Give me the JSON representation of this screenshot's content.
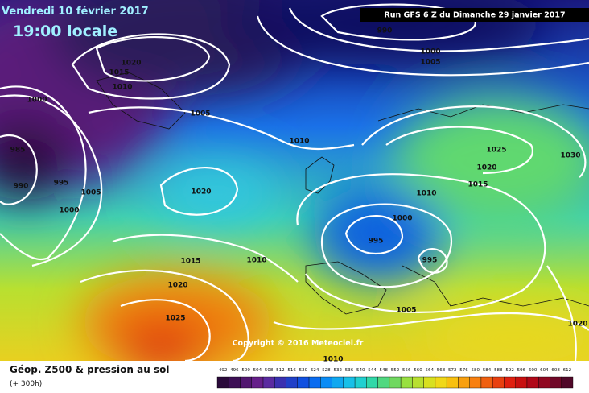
{
  "header": {
    "date": "Vendredi 10 février 2017",
    "time": "19:00 locale",
    "run": "Run GFS 6 Z du Dimanche 29 janvier 2017"
  },
  "isobar_labels": [
    990,
    1000,
    1005,
    1020,
    1015,
    1010,
    1000,
    1005,
    1010,
    985,
    995,
    990,
    1005,
    1000,
    1020,
    1025,
    1030,
    1020,
    1015,
    1010,
    1000,
    995,
    995,
    1015,
    1010,
    1020,
    1025,
    1005,
    1020,
    1010
  ],
  "copyright": "Copyright © 2016 Meteociel.fr",
  "legend": {
    "title": "Géop. Z500 & pression au sol",
    "lead": "(+ 300h)",
    "scale": [
      492,
      496,
      500,
      504,
      508,
      512,
      516,
      520,
      524,
      528,
      532,
      536,
      540,
      544,
      548,
      552,
      556,
      560,
      564,
      568,
      572,
      576,
      580,
      584,
      588,
      592,
      596,
      600,
      604,
      608,
      612
    ],
    "colors": [
      "#2a0a3a",
      "#3d0f55",
      "#521770",
      "#661f8a",
      "#5a2aa0",
      "#3a30b0",
      "#2040c8",
      "#1050e0",
      "#0a6cf0",
      "#0a8cf5",
      "#10a8f0",
      "#18c0e8",
      "#20d0d0",
      "#30d8a8",
      "#50d880",
      "#70d860",
      "#98e040",
      "#b8e030",
      "#d8e020",
      "#f0d818",
      "#f8c010",
      "#f8a010",
      "#f88010",
      "#f06010",
      "#e84010",
      "#e02010",
      "#c81010",
      "#b00818",
      "#900820",
      "#700828",
      "#500828"
    ]
  }
}
